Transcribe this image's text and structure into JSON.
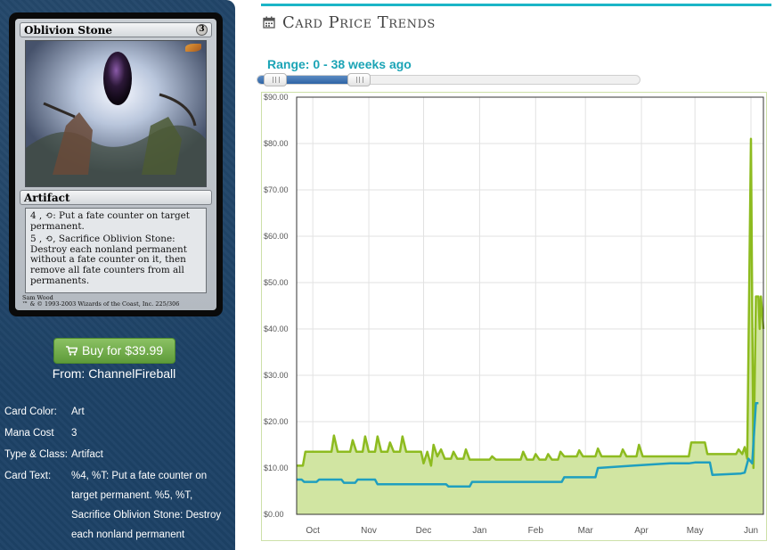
{
  "card": {
    "name": "Oblivion Stone",
    "cost": "3",
    "type_line": "Artifact",
    "rules": [
      "4 , ⟲: Put a fate counter on target permanent.",
      "5 , ⟲, Sacrifice Oblivion Stone: Destroy each nonland permanent without a fate counter on it, then remove all fate counters from all permanents."
    ],
    "artist": "Sam Wood",
    "copyright": "™ & © 1993-2003 Wizards of the Coast, Inc. 225/306"
  },
  "buy": {
    "label": "Buy for $39.99",
    "from": "From: ChannelFireball"
  },
  "details": [
    {
      "label": "Card Color:",
      "value": "Art"
    },
    {
      "label": "Mana Cost",
      "value": "3"
    },
    {
      "label": "Type & Class:",
      "value": "Artifact"
    },
    {
      "label": "Card Text:",
      "value": "%4, %T: Put a fate counter on target permanent. %5, %T, Sacrifice Oblivion Stone: Destroy each nonland permanent"
    }
  ],
  "section": {
    "title": "Card Price Trends"
  },
  "range": {
    "label": "Range: 0 - 38 weeks ago",
    "min_weeks": 0,
    "max_weeks": 38,
    "handle_low_fraction": 0.02,
    "handle_high_fraction": 0.24
  },
  "colors": {
    "accent": "#1bb5c7",
    "green_series": "#8dbb1f",
    "green_fill": "#d1e5a2",
    "blue_series": "#1f9fbf",
    "panel": "#1d4266",
    "button": "#6aa845"
  },
  "chart_data": {
    "type": "area",
    "title": "",
    "xlabel": "",
    "ylabel": "",
    "ylim": [
      0,
      90
    ],
    "y_ticks": [
      "$0.00",
      "$10.00",
      "$20.00",
      "$30.00",
      "$40.00",
      "$50.00",
      "$60.00",
      "$70.00",
      "$80.00",
      "$90.00"
    ],
    "y_tick_values": [
      0,
      10,
      20,
      30,
      40,
      50,
      60,
      70,
      80,
      90
    ],
    "x_range": [
      0,
      37.5
    ],
    "x_ticks": [
      {
        "label": "Oct",
        "x": 1.3
      },
      {
        "label": "Nov",
        "x": 5.8
      },
      {
        "label": "Dec",
        "x": 10.2
      },
      {
        "label": "Jan",
        "x": 14.7
      },
      {
        "label": "Feb",
        "x": 19.2
      },
      {
        "label": "Mar",
        "x": 23.2
      },
      {
        "label": "Apr",
        "x": 27.7
      },
      {
        "label": "May",
        "x": 32.0
      },
      {
        "label": "Jun",
        "x": 36.5
      }
    ],
    "grid": true,
    "series": [
      {
        "fill": true,
        "points": [
          [
            0,
            10.5
          ],
          [
            0.5,
            10.5
          ],
          [
            0.7,
            13.5
          ],
          [
            2.8,
            13.5
          ],
          [
            3.0,
            17
          ],
          [
            3.3,
            13.5
          ],
          [
            4.3,
            13.5
          ],
          [
            4.5,
            16
          ],
          [
            4.8,
            13.5
          ],
          [
            5.3,
            13.5
          ],
          [
            5.5,
            16.8
          ],
          [
            5.8,
            13.5
          ],
          [
            6.3,
            13.5
          ],
          [
            6.5,
            16.8
          ],
          [
            6.8,
            13.5
          ],
          [
            7.3,
            13.5
          ],
          [
            7.5,
            15.5
          ],
          [
            7.8,
            13.5
          ],
          [
            8.3,
            13.5
          ],
          [
            8.5,
            16.8
          ],
          [
            8.8,
            13.5
          ],
          [
            10.0,
            13.5
          ],
          [
            10.2,
            11
          ],
          [
            10.5,
            13.5
          ],
          [
            10.8,
            10.5
          ],
          [
            11.0,
            15
          ],
          [
            11.3,
            12.5
          ],
          [
            11.6,
            14
          ],
          [
            11.9,
            12
          ],
          [
            12.4,
            12
          ],
          [
            12.6,
            13.5
          ],
          [
            12.9,
            12
          ],
          [
            13.4,
            12
          ],
          [
            13.6,
            14
          ],
          [
            13.9,
            11.8
          ],
          [
            15.5,
            11.8
          ],
          [
            15.7,
            12.5
          ],
          [
            16.0,
            11.8
          ],
          [
            18.0,
            11.8
          ],
          [
            18.2,
            13.5
          ],
          [
            18.5,
            11.8
          ],
          [
            19.0,
            11.8
          ],
          [
            19.2,
            13
          ],
          [
            19.5,
            11.8
          ],
          [
            20.0,
            11.8
          ],
          [
            20.2,
            13
          ],
          [
            20.5,
            11.8
          ],
          [
            21.0,
            11.8
          ],
          [
            21.2,
            13.5
          ],
          [
            21.5,
            12.5
          ],
          [
            22.5,
            12.5
          ],
          [
            22.7,
            13.8
          ],
          [
            23.0,
            12.5
          ],
          [
            24.0,
            12.5
          ],
          [
            24.2,
            14.2
          ],
          [
            24.5,
            12.5
          ],
          [
            26.0,
            12.5
          ],
          [
            26.2,
            14
          ],
          [
            26.5,
            12.5
          ],
          [
            27.3,
            12.5
          ],
          [
            27.5,
            15
          ],
          [
            27.8,
            12.5
          ],
          [
            31.5,
            12.5
          ],
          [
            31.7,
            15.5
          ],
          [
            32.0,
            15.5
          ],
          [
            32.8,
            15.5
          ],
          [
            33.0,
            13
          ],
          [
            35.3,
            13
          ],
          [
            35.5,
            14
          ],
          [
            35.8,
            13
          ],
          [
            36.0,
            14.5
          ],
          [
            36.2,
            12
          ],
          [
            36.5,
            81
          ],
          [
            36.7,
            10
          ],
          [
            36.9,
            47
          ],
          [
            37.1,
            47
          ],
          [
            37.2,
            40
          ],
          [
            37.3,
            47
          ],
          [
            37.5,
            40
          ]
        ]
      },
      {
        "fill": false,
        "points": [
          [
            0,
            7.5
          ],
          [
            0.4,
            7.5
          ],
          [
            0.6,
            7
          ],
          [
            1.6,
            7
          ],
          [
            1.8,
            7.5
          ],
          [
            3.6,
            7.5
          ],
          [
            3.8,
            6.8
          ],
          [
            4.7,
            6.8
          ],
          [
            4.9,
            7.5
          ],
          [
            6.3,
            7.5
          ],
          [
            6.5,
            6.5
          ],
          [
            12.0,
            6.5
          ],
          [
            12.2,
            6
          ],
          [
            13.9,
            6
          ],
          [
            14.1,
            7
          ],
          [
            21.3,
            7
          ],
          [
            21.5,
            8
          ],
          [
            24.0,
            8
          ],
          [
            24.2,
            10
          ],
          [
            27.0,
            10.5
          ],
          [
            30.0,
            11
          ],
          [
            31.5,
            11
          ],
          [
            32.0,
            11.2
          ],
          [
            33.2,
            11.2
          ],
          [
            33.4,
            8.5
          ],
          [
            35.7,
            8.8
          ],
          [
            36.0,
            9
          ],
          [
            36.3,
            12
          ],
          [
            36.6,
            11
          ],
          [
            36.9,
            24
          ],
          [
            37.1,
            24
          ]
        ]
      }
    ]
  }
}
